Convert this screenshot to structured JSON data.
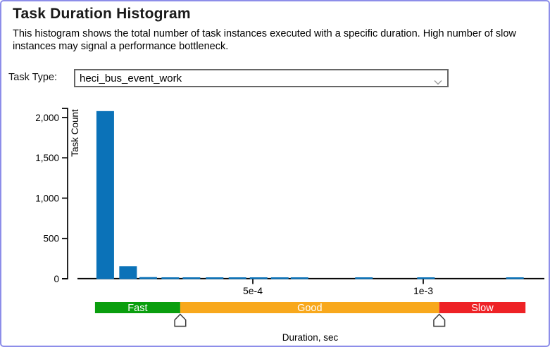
{
  "window": {
    "border_color": "#8d8ee9",
    "background": "#ffffff"
  },
  "header": {
    "title": "Task Duration Histogram",
    "description": "This histogram shows the total number of task instances executed with a specific duration. High number of slow instances may signal a performance bottleneck."
  },
  "task_type": {
    "label": "Task Type:",
    "selected_option": "heci_bus_event_work",
    "chevron_icon": "chevron-down"
  },
  "chart_data": {
    "type": "bar",
    "title": "",
    "xlabel": "Duration, sec",
    "ylabel": "Task Count",
    "grid": false,
    "legend": false,
    "x_ticks": [
      {
        "label": "5e-4",
        "value": 0.0005
      },
      {
        "label": "1e-3",
        "value": 0.001
      }
    ],
    "y_ticks": [
      {
        "label": "0",
        "value": 0
      },
      {
        "label": "500",
        "value": 500
      },
      {
        "label": "1,000",
        "value": 1000
      },
      {
        "label": "1,500",
        "value": 1500
      },
      {
        "label": "2,000",
        "value": 2000
      }
    ],
    "ylim": [
      0,
      2100
    ],
    "xlim": [
      0,
      0.00135
    ],
    "bar_color": "#0b72b8",
    "axis_color": "#000000",
    "bars": [
      {
        "duration": 6.7e-05,
        "count": 2080
      },
      {
        "duration": 0.000134,
        "count": 155
      },
      {
        "duration": 0.000193,
        "count": 20
      },
      {
        "duration": 0.000258,
        "count": 12
      },
      {
        "duration": 0.00032,
        "count": 12
      },
      {
        "duration": 0.000388,
        "count": 12
      },
      {
        "duration": 0.000455,
        "count": 12
      },
      {
        "duration": 0.000517,
        "count": 12
      },
      {
        "duration": 0.000579,
        "count": 12
      },
      {
        "duration": 0.000637,
        "count": 12
      },
      {
        "duration": 0.000826,
        "count": 12
      },
      {
        "duration": 0.001008,
        "count": 12
      },
      {
        "duration": 0.001269,
        "count": 12
      }
    ],
    "zones": [
      {
        "label": "Fast",
        "color": "#0a9e0e",
        "from": 3.7e-05,
        "to": 0.000287
      },
      {
        "label": "Good",
        "color": "#f8a81c",
        "from": 0.000287,
        "to": 0.001047
      },
      {
        "label": "Slow",
        "color": "#ee2226",
        "from": 0.001047,
        "to": 0.0013
      }
    ],
    "threshold_handles": [
      0.000287,
      0.001047
    ]
  }
}
